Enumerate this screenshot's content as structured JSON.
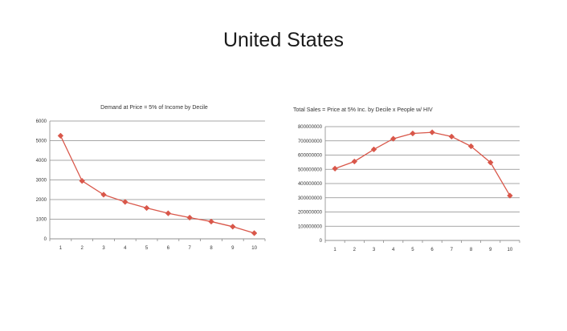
{
  "slide": {
    "title": "United States"
  },
  "chart_data": [
    {
      "type": "line",
      "title": "Demand  at Price = 5% of Income by Decile",
      "categories": [
        "1",
        "2",
        "3",
        "4",
        "5",
        "6",
        "7",
        "8",
        "9",
        "10"
      ],
      "series": [
        {
          "values": [
            5250,
            2950,
            2250,
            1880,
            1570,
            1300,
            1080,
            880,
            620,
            290
          ]
        }
      ],
      "yticks": [
        "0",
        "1000",
        "2000",
        "3000",
        "4000",
        "5000",
        "6000"
      ],
      "ylim": [
        0,
        6000
      ],
      "grid": true,
      "color": "#d9574a"
    },
    {
      "type": "line",
      "title": "Total Sales = Price at 5% Inc. by Decile   x   People w/ HIV",
      "categories": [
        "1",
        "2",
        "3",
        "4",
        "5",
        "6",
        "7",
        "8",
        "9",
        "10"
      ],
      "series": [
        {
          "values": [
            505000000,
            555000000,
            640000000,
            715000000,
            752000000,
            760000000,
            730000000,
            662000000,
            548000000,
            315000000
          ]
        }
      ],
      "yticks": [
        "0",
        "100000000",
        "200000000",
        "300000000",
        "400000000",
        "500000000",
        "600000000",
        "700000000",
        "800000000"
      ],
      "ylim": [
        0,
        800000000
      ],
      "grid": true,
      "color": "#d9574a"
    }
  ]
}
